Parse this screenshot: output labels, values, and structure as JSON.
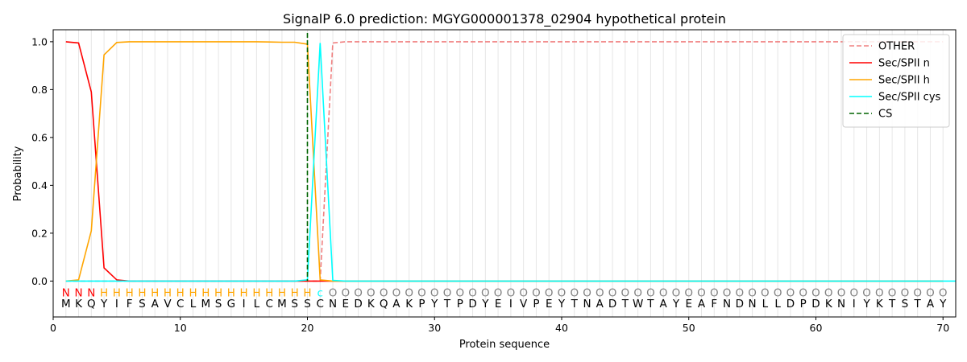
{
  "chart_data": {
    "type": "line",
    "title": "SignalP 6.0 prediction: MGYG000001378_02904 hypothetical protein",
    "xlabel": "Protein sequence",
    "ylabel": "Probability",
    "xlim": [
      0,
      71
    ],
    "ylim": [
      -0.15,
      1.05
    ],
    "xticks": [
      0,
      10,
      20,
      30,
      40,
      50,
      60,
      70
    ],
    "yticks": [
      0.0,
      0.2,
      0.4,
      0.6,
      0.8,
      1.0
    ],
    "ytick_labels": [
      "0.0",
      "0.2",
      "0.4",
      "0.6",
      "0.8",
      "1.0"
    ],
    "legend_position": "top-right",
    "sequence": [
      "M",
      "K",
      "Q",
      "Y",
      "I",
      "F",
      "S",
      "A",
      "V",
      "C",
      "L",
      "M",
      "S",
      "G",
      "I",
      "L",
      "C",
      "M",
      "S",
      "S",
      "C",
      "N",
      "E",
      "D",
      "K",
      "Q",
      "A",
      "K",
      "P",
      "Y",
      "T",
      "P",
      "D",
      "Y",
      "E",
      "I",
      "V",
      "P",
      "E",
      "Y",
      "T",
      "N",
      "A",
      "D",
      "T",
      "W",
      "T",
      "A",
      "Y",
      "E",
      "A",
      "F",
      "N",
      "D",
      "N",
      "L",
      "L",
      "D",
      "P",
      "D",
      "K",
      "N",
      "I",
      "Y",
      "K",
      "T",
      "S",
      "T",
      "A",
      "Y"
    ],
    "annotation": [
      "N",
      "N",
      "N",
      "H",
      "H",
      "H",
      "H",
      "H",
      "H",
      "H",
      "H",
      "H",
      "H",
      "H",
      "H",
      "H",
      "H",
      "H",
      "H",
      "H",
      "c",
      "O",
      "O",
      "O",
      "O",
      "O",
      "O",
      "O",
      "O",
      "O",
      "O",
      "O",
      "O",
      "O",
      "O",
      "O",
      "O",
      "O",
      "O",
      "O",
      "O",
      "O",
      "O",
      "O",
      "O",
      "O",
      "O",
      "O",
      "O",
      "O",
      "O",
      "O",
      "O",
      "O",
      "O",
      "O",
      "O",
      "O",
      "O",
      "O",
      "O",
      "O",
      "O",
      "O",
      "O",
      "O",
      "O",
      "O",
      "O",
      "O"
    ],
    "annotation_colors": {
      "N": "#ff0000",
      "H": "#ffa500",
      "c": "#00ffff",
      "O": "#808080"
    },
    "series": [
      {
        "name": "OTHER",
        "color": "#f08080",
        "style": "dashed",
        "values": [
          0,
          0,
          0,
          0,
          0,
          0,
          0,
          0,
          0,
          0,
          0,
          0,
          0,
          0,
          0,
          0,
          0,
          0,
          0,
          0,
          0,
          0.995,
          1,
          1,
          1,
          1,
          1,
          1,
          1,
          1,
          1,
          1,
          1,
          1,
          1,
          1,
          1,
          1,
          1,
          1,
          1,
          1,
          1,
          1,
          1,
          1,
          1,
          1,
          1,
          1,
          1,
          1,
          1,
          1,
          1,
          1,
          1,
          1,
          1,
          1,
          1,
          1,
          1,
          1,
          1,
          1,
          1,
          1,
          1,
          1
        ]
      },
      {
        "name": "Sec/SPII n",
        "color": "#ff0000",
        "style": "solid",
        "values": [
          1.0,
          0.995,
          0.79,
          0.055,
          0.005,
          0,
          0,
          0,
          0,
          0,
          0,
          0,
          0,
          0,
          0,
          0,
          0,
          0,
          0,
          0,
          0,
          0,
          0,
          0,
          0,
          0,
          0,
          0,
          0,
          0,
          0,
          0,
          0,
          0,
          0,
          0,
          0,
          0,
          0,
          0,
          0,
          0,
          0,
          0,
          0,
          0,
          0,
          0,
          0,
          0,
          0,
          0,
          0,
          0,
          0,
          0,
          0,
          0,
          0,
          0,
          0,
          0,
          0,
          0,
          0,
          0,
          0,
          0,
          0,
          0
        ]
      },
      {
        "name": "Sec/SPII h",
        "color": "#ffa500",
        "style": "solid",
        "values": [
          0,
          0.005,
          0.21,
          0.945,
          0.997,
          1.0,
          1.0,
          1.0,
          1.0,
          1.0,
          1.0,
          1.0,
          1.0,
          1.0,
          1.0,
          1.0,
          0.999,
          0.998,
          0.998,
          0.99,
          0.005,
          0,
          0,
          0,
          0,
          0,
          0,
          0,
          0,
          0,
          0,
          0,
          0,
          0,
          0,
          0,
          0,
          0,
          0,
          0,
          0,
          0,
          0,
          0,
          0,
          0,
          0,
          0,
          0,
          0,
          0,
          0,
          0,
          0,
          0,
          0,
          0,
          0,
          0,
          0,
          0,
          0,
          0,
          0,
          0,
          0,
          0,
          0,
          0,
          0
        ]
      },
      {
        "name": "Sec/SPII cys",
        "color": "#00ffff",
        "style": "solid",
        "values": [
          0,
          0,
          0,
          0,
          0,
          0,
          0,
          0,
          0,
          0,
          0,
          0,
          0,
          0,
          0,
          0,
          0,
          0,
          0,
          0.005,
          0.995,
          0.003,
          0,
          0,
          0,
          0,
          0,
          0,
          0,
          0,
          0,
          0,
          0,
          0,
          0,
          0,
          0,
          0,
          0,
          0,
          0,
          0,
          0,
          0,
          0,
          0,
          0,
          0,
          0,
          0,
          0,
          0,
          0,
          0,
          0,
          0,
          0,
          0,
          0,
          0,
          0,
          0,
          0,
          0,
          0,
          0,
          0,
          0,
          0,
          0,
          0
        ]
      },
      {
        "name": "CS",
        "color": "#006400",
        "style": "dashed",
        "x_position": 20
      }
    ]
  }
}
